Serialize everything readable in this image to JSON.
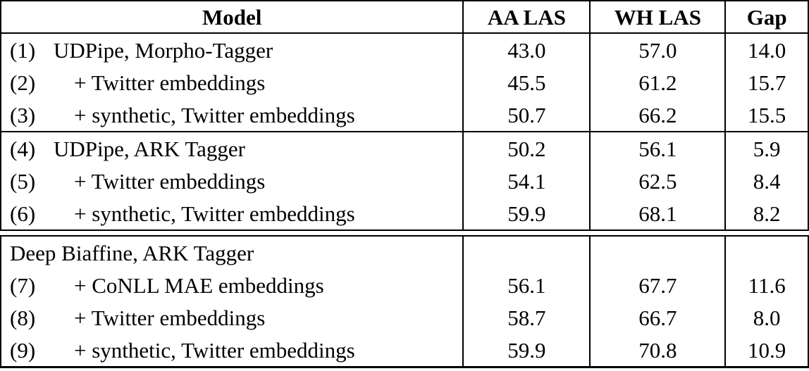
{
  "table": {
    "columns": [
      "Model",
      "AA LAS",
      "WH LAS",
      "Gap"
    ],
    "sections": [
      {
        "groups": [
          {
            "rows": [
              {
                "num": "(1)",
                "model": "UDPipe, Morpho-Tagger",
                "aa_las": "43.0",
                "wh_las": "57.0",
                "gap": "14.0"
              },
              {
                "num": "(2)",
                "model": "+ Twitter embeddings",
                "aa_las": "45.5",
                "wh_las": "61.2",
                "gap": "15.7"
              },
              {
                "num": "(3)",
                "model": "+ synthetic, Twitter embeddings",
                "aa_las": "50.7",
                "wh_las": "66.2",
                "gap": "15.5"
              }
            ]
          },
          {
            "rows": [
              {
                "num": "(4)",
                "model": "UDPipe, ARK Tagger",
                "aa_las": "50.2",
                "wh_las": "56.1",
                "gap": "5.9"
              },
              {
                "num": "(5)",
                "model": "+ Twitter embeddings",
                "aa_las": "54.1",
                "wh_las": "62.5",
                "gap": "8.4"
              },
              {
                "num": "(6)",
                "model": "+ synthetic, Twitter embeddings",
                "aa_las": "59.9",
                "wh_las": "68.1",
                "gap": "8.2"
              }
            ]
          }
        ]
      },
      {
        "groups": [
          {
            "rows": [
              {
                "num": "",
                "model": "Deep Biaffine, ARK Tagger",
                "aa_las": "",
                "wh_las": "",
                "gap": ""
              },
              {
                "num": "(7)",
                "model": "+ CoNLL MAE embeddings",
                "aa_las": "56.1",
                "wh_las": "67.7",
                "gap": "11.6"
              },
              {
                "num": "(8)",
                "model": "+ Twitter embeddings",
                "aa_las": "58.7",
                "wh_las": "66.7",
                "gap": "8.0"
              },
              {
                "num": "(9)",
                "model": "+ synthetic, Twitter embeddings",
                "aa_las": "59.9",
                "wh_las": "70.8",
                "gap": "10.9"
              }
            ]
          }
        ]
      }
    ]
  }
}
